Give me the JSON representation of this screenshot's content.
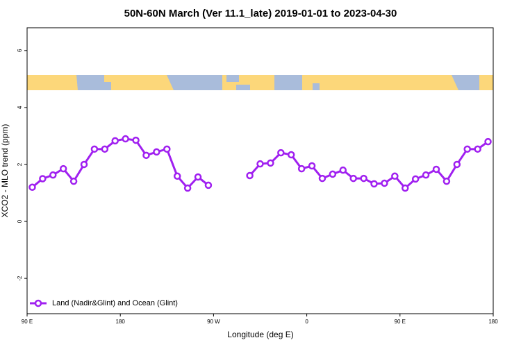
{
  "chart_data": {
    "type": "line",
    "title": "50N-60N March (Ver 11.1_late)   2019-01-01 to 2023-04-30",
    "x_label": "Longitude (deg E)",
    "y_label": "XCO2 - MLO trend (ppm)",
    "x": [
      95,
      105,
      115,
      125,
      135,
      145,
      155,
      165,
      175,
      185,
      195,
      205,
      215,
      225,
      235,
      245,
      255,
      265,
      275,
      285,
      295,
      305,
      315,
      325,
      335,
      345,
      355,
      365,
      375,
      385,
      395,
      405,
      415,
      425,
      435,
      445,
      455,
      465,
      475,
      485,
      495,
      505,
      515,
      525,
      535
    ],
    "series": [
      {
        "name": "Land (Nadir&Glint) and Ocean (Glint)",
        "color": "#a020f0",
        "values": [
          1.2,
          1.5,
          1.63,
          1.85,
          1.41,
          2.0,
          2.54,
          2.54,
          2.83,
          2.9,
          2.85,
          2.32,
          2.44,
          2.54,
          1.59,
          1.17,
          1.56,
          1.27,
          null,
          null,
          null,
          1.61,
          2.02,
          2.05,
          2.41,
          2.34,
          1.85,
          1.95,
          1.51,
          1.66,
          1.8,
          1.51,
          1.51,
          1.32,
          1.34,
          1.59,
          1.17,
          1.49,
          1.63,
          1.83,
          1.41,
          2.0,
          2.54,
          2.54,
          2.8
        ]
      }
    ],
    "xlim": [
      90,
      540
    ],
    "xticks": [
      {
        "value": 90,
        "label": "90 E"
      },
      {
        "value": 180,
        "label": "180"
      },
      {
        "value": 270,
        "label": "90 W"
      },
      {
        "value": 360,
        "label": "0"
      },
      {
        "value": 450,
        "label": "90 E"
      },
      {
        "value": 540,
        "label": "180"
      }
    ],
    "ylim": [
      -3.24,
      6.8
    ],
    "yticks": [
      -2,
      0,
      2,
      4,
      6
    ],
    "legend": "bottom-left"
  }
}
